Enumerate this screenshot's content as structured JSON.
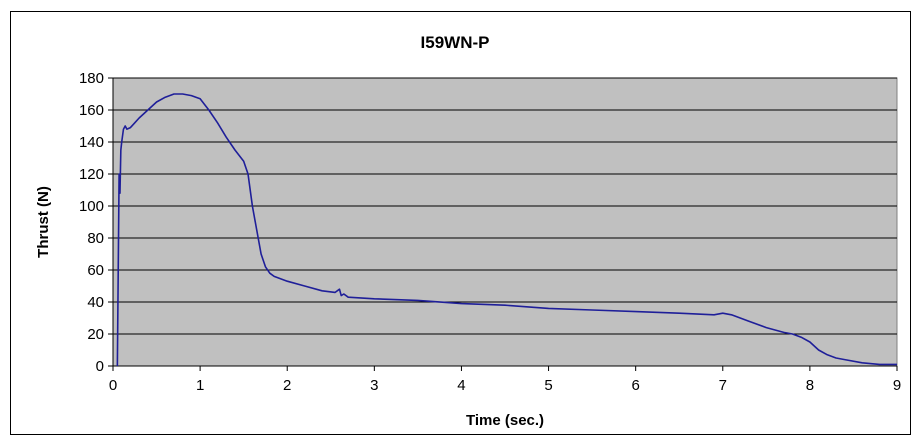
{
  "chart_data": {
    "type": "line",
    "title": "I59WN-P",
    "xlabel": "Time (sec.)",
    "ylabel": "Thrust (N)",
    "xlim": [
      0,
      9
    ],
    "ylim": [
      0,
      180
    ],
    "x_ticks": [
      0,
      1,
      2,
      3,
      4,
      5,
      6,
      7,
      8,
      9
    ],
    "y_ticks": [
      0,
      20,
      40,
      60,
      80,
      100,
      120,
      140,
      160,
      180
    ],
    "grid": "horizontal",
    "legend": "none",
    "colors": {
      "line": "#1f1f99",
      "plot_background": "#c0c0c0",
      "gridline": "#000000"
    },
    "series": [
      {
        "x": [
          0.05,
          0.06,
          0.07,
          0.08,
          0.09,
          0.1,
          0.12,
          0.14,
          0.16,
          0.2,
          0.25,
          0.3,
          0.4,
          0.5,
          0.6,
          0.7,
          0.8,
          0.9,
          1.0,
          1.1,
          1.2,
          1.3,
          1.4,
          1.5,
          1.55,
          1.6,
          1.65,
          1.7,
          1.75,
          1.8,
          1.85,
          1.9,
          2.0,
          2.2,
          2.4,
          2.55,
          2.6,
          2.62,
          2.65,
          2.7,
          3.0,
          3.5,
          4.0,
          4.5,
          5.0,
          5.5,
          6.0,
          6.5,
          6.9,
          7.0,
          7.1,
          7.3,
          7.5,
          7.7,
          7.8,
          7.9,
          8.0,
          8.1,
          8.2,
          8.3,
          8.4,
          8.6,
          8.8,
          9.0
        ],
        "y": [
          0,
          60,
          120,
          108,
          135,
          140,
          148,
          150,
          148,
          149,
          152,
          155,
          160,
          165,
          168,
          170,
          170,
          169,
          167,
          160,
          152,
          143,
          135,
          128,
          120,
          100,
          85,
          70,
          62,
          58,
          56,
          55,
          53,
          50,
          47,
          46,
          48,
          44,
          45,
          43,
          42,
          41,
          39,
          38,
          36,
          35,
          34,
          33,
          32,
          33,
          32,
          28,
          24,
          21,
          20,
          18,
          15,
          10,
          7,
          5,
          4,
          2,
          1,
          1
        ]
      }
    ]
  }
}
